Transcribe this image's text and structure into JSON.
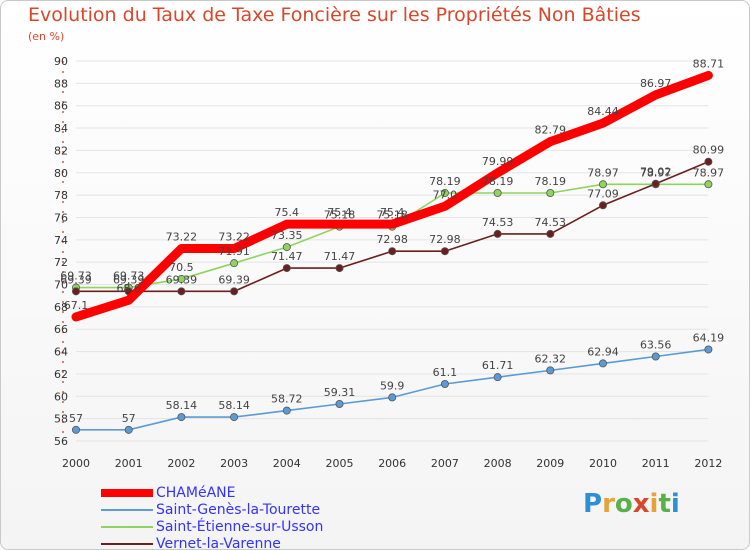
{
  "title": "Evolution du Taux de Taxe Foncière sur les Propriétés Non Bâties",
  "subtitle": "(en %)",
  "brand": {
    "text": "Proxiti",
    "letter_colors": [
      "#2f8fd6",
      "#e8a23a",
      "#5ab04a",
      "#d9472b",
      "#e8a23a",
      "#5ab04a",
      "#2f8fd6"
    ]
  },
  "chart_data": {
    "type": "line",
    "x": [
      "2000",
      "2001",
      "2002",
      "2003",
      "2004",
      "2005",
      "2006",
      "2007",
      "2008",
      "2009",
      "2010",
      "2011",
      "2012"
    ],
    "ylim": [
      56,
      90
    ],
    "yticks": [
      56,
      58,
      60,
      62,
      64,
      66,
      68,
      70,
      72,
      74,
      76,
      78,
      80,
      82,
      84,
      86,
      88,
      90
    ],
    "grid": true,
    "legend_position": "bottom-left",
    "series": [
      {
        "name": "CHAMéANE",
        "color": "#ff0000",
        "style": "thick",
        "values": [
          67.1,
          68.6,
          73.22,
          73.22,
          75.4,
          75.4,
          75.4,
          77.0,
          79.99,
          82.79,
          84.44,
          86.97,
          88.71
        ],
        "labels": [
          "67.1",
          "68.6",
          "73.22",
          "73.22",
          "75.4",
          "75.4",
          "75.4",
          "77.0",
          "79.99",
          "82.79",
          "84.44",
          "86.97",
          "88.71"
        ]
      },
      {
        "name": "Saint-Genès-la-Tourette",
        "color": "#5b9bd5",
        "style": "marker",
        "values": [
          57,
          57,
          58.14,
          58.14,
          58.72,
          59.31,
          59.9,
          61.1,
          61.71,
          62.32,
          62.94,
          63.56,
          64.19
        ],
        "labels": [
          "57",
          "57",
          "58.14",
          "58.14",
          "58.72",
          "59.31",
          "59.9",
          "61.1",
          "61.71",
          "62.32",
          "62.94",
          "63.56",
          "64.19"
        ]
      },
      {
        "name": "Saint-Étienne-sur-Usson",
        "color": "#8fd45f",
        "style": "marker",
        "values": [
          69.73,
          69.73,
          70.5,
          71.91,
          73.35,
          75.18,
          75.18,
          78.19,
          78.19,
          78.19,
          78.97,
          78.97,
          78.97
        ],
        "labels": [
          "69.73",
          "69.73",
          "70.5",
          "71.91",
          "73.35",
          "75.18",
          "75.18",
          "78.19",
          "78.19",
          "78.19",
          "78.97",
          "78.97",
          "78.97"
        ]
      },
      {
        "name": "Vernet-la-Varenne",
        "color": "#6b1f1f",
        "style": "marker",
        "values": [
          69.39,
          69.39,
          69.39,
          69.39,
          71.47,
          71.47,
          72.98,
          72.98,
          74.53,
          74.53,
          77.09,
          79.02,
          80.99
        ],
        "labels": [
          "69.39",
          "69.39",
          "69.39",
          "69.39",
          "71.47",
          "71.47",
          "72.98",
          "72.98",
          "74.53",
          "74.53",
          "77.09",
          "79.02",
          "80.99"
        ]
      }
    ]
  }
}
